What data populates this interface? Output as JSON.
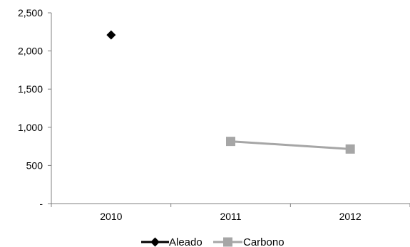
{
  "chart_data": {
    "type": "line",
    "categories": [
      "2010",
      "2011",
      "2012"
    ],
    "series": [
      {
        "name": "Aleado",
        "values": [
          2210,
          null,
          null
        ],
        "color": "#000000",
        "marker": "diamond"
      },
      {
        "name": "Carbono",
        "values": [
          null,
          815,
          715
        ],
        "color": "#a6a6a6",
        "marker": "square"
      }
    ],
    "ylim": [
      0,
      2500
    ],
    "yticks": [
      0,
      500,
      1000,
      1500,
      2000,
      2500
    ],
    "ytick_labels": [
      "-",
      "500",
      "1,000",
      "1,500",
      "2,000",
      "2,500"
    ],
    "grid": false,
    "legend_position": "bottom"
  }
}
